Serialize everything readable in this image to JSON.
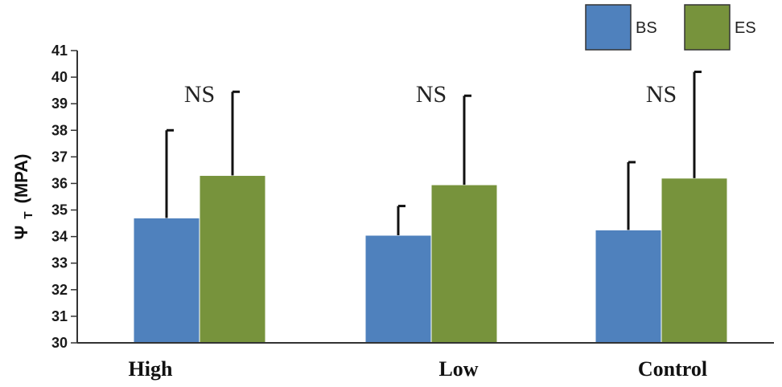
{
  "chart_data": {
    "type": "bar",
    "categories": [
      "High",
      "Low",
      "Control"
    ],
    "series": [
      {
        "name": "BS",
        "color": "#4f81bd",
        "values": [
          34.7,
          34.05,
          34.25
        ],
        "error_top": [
          38.0,
          35.15,
          36.8
        ]
      },
      {
        "name": "ES",
        "color": "#77933c",
        "values": [
          36.3,
          35.95,
          36.2
        ],
        "error_top": [
          39.45,
          39.3,
          40.2
        ]
      }
    ],
    "annotations": [
      "NS",
      "NS",
      "NS"
    ],
    "ylabel": "Ψ",
    "ylabel_sub": "T",
    "ylabel_unit": "(MPA)",
    "xlabel": "",
    "title": "",
    "ylim": [
      30,
      41
    ],
    "yticks": [
      30,
      31,
      32,
      33,
      34,
      35,
      36,
      37,
      38,
      39,
      40,
      41
    ],
    "legend_position": "top-right",
    "grid": false
  }
}
